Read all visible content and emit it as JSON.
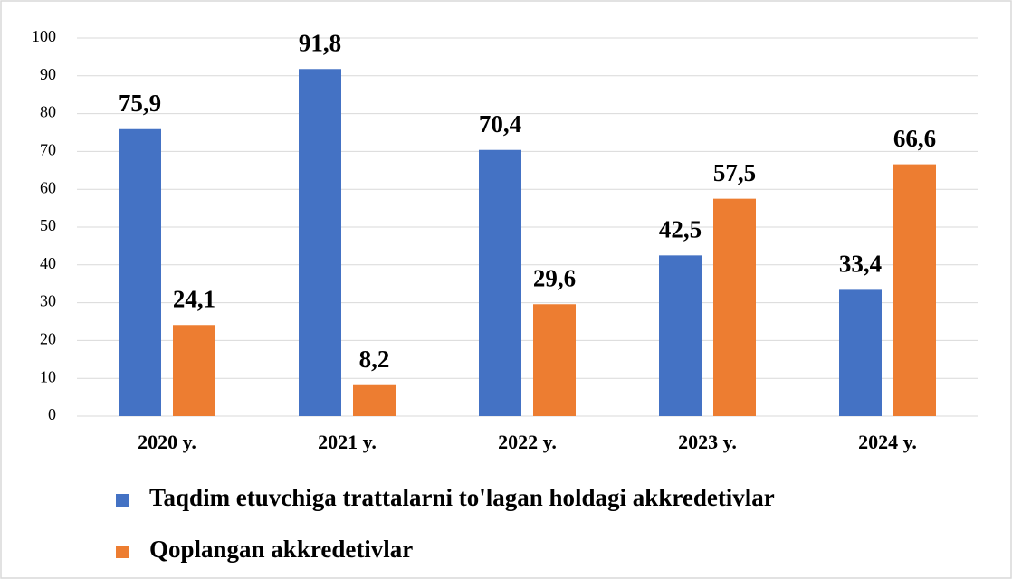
{
  "chart_data": {
    "type": "bar",
    "categories": [
      "2020 y.",
      "2021 y.",
      "2022 y.",
      "2023 y.",
      "2024 y."
    ],
    "series": [
      {
        "name": "Taqdim etuvchiga trattalarni to'lagan holdagi akkredetivlar",
        "color": "#4472c4",
        "values": [
          75.9,
          91.8,
          70.4,
          42.5,
          33.4
        ],
        "value_labels": [
          "75,9",
          "91,8",
          "70,4",
          "42,5",
          "33,4"
        ]
      },
      {
        "name": "Qoplangan akkredetivlar",
        "color": "#ed7d31",
        "values": [
          24.1,
          8.2,
          29.6,
          57.5,
          66.6
        ],
        "value_labels": [
          "24,1",
          "8,2",
          "29,6",
          "57,5",
          "66,6"
        ]
      }
    ],
    "ylim": [
      0,
      100
    ],
    "yticks": [
      0,
      10,
      20,
      30,
      40,
      50,
      60,
      70,
      80,
      90,
      100
    ],
    "grid": true,
    "legend": "bottom"
  }
}
